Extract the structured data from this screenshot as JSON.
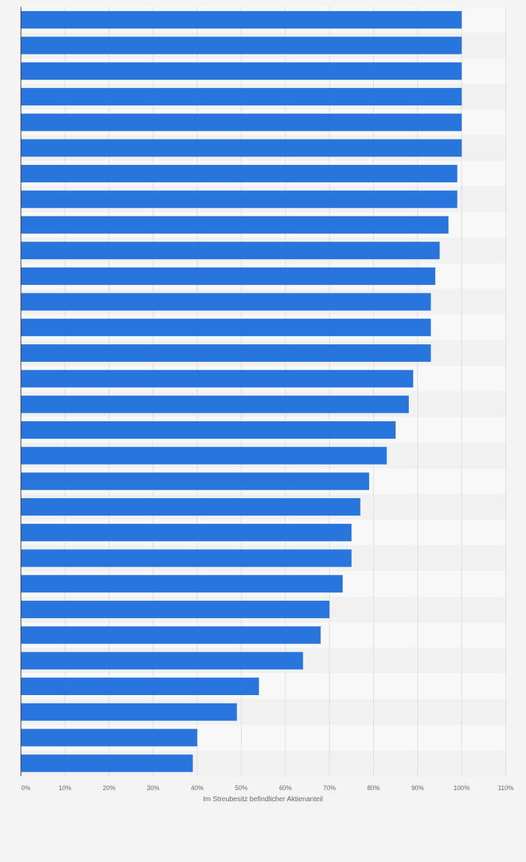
{
  "colors": {
    "background": "#f4f4f4",
    "band_light": "#f8f8f8",
    "band_dark": "#f1f1f1",
    "bar": "#2876dd",
    "gridline": "#dddddd",
    "axis": "#333333",
    "tick_text": "#666666"
  },
  "chart_data": {
    "type": "bar",
    "orientation": "horizontal",
    "title": "",
    "xlabel": "Im Streubesitz befindlicher Aktienanteil",
    "ylabel": "",
    "category_labels_visible": false,
    "values": [
      100,
      100,
      100,
      100,
      100,
      100,
      99,
      99,
      97,
      95,
      94,
      93,
      93,
      93,
      89,
      88,
      85,
      83,
      79,
      77,
      75,
      75,
      73,
      70,
      68,
      64,
      54,
      49,
      40,
      39
    ],
    "unit": "%",
    "xlim": [
      0,
      110
    ],
    "x_ticks": [
      0,
      10,
      20,
      30,
      40,
      50,
      60,
      70,
      80,
      90,
      100,
      110
    ],
    "x_tick_labels": [
      "0%",
      "10%",
      "20%",
      "30%",
      "40%",
      "50%",
      "60%",
      "70%",
      "80%",
      "90%",
      "100%",
      "110%"
    ],
    "grid": true,
    "legend": "none"
  }
}
